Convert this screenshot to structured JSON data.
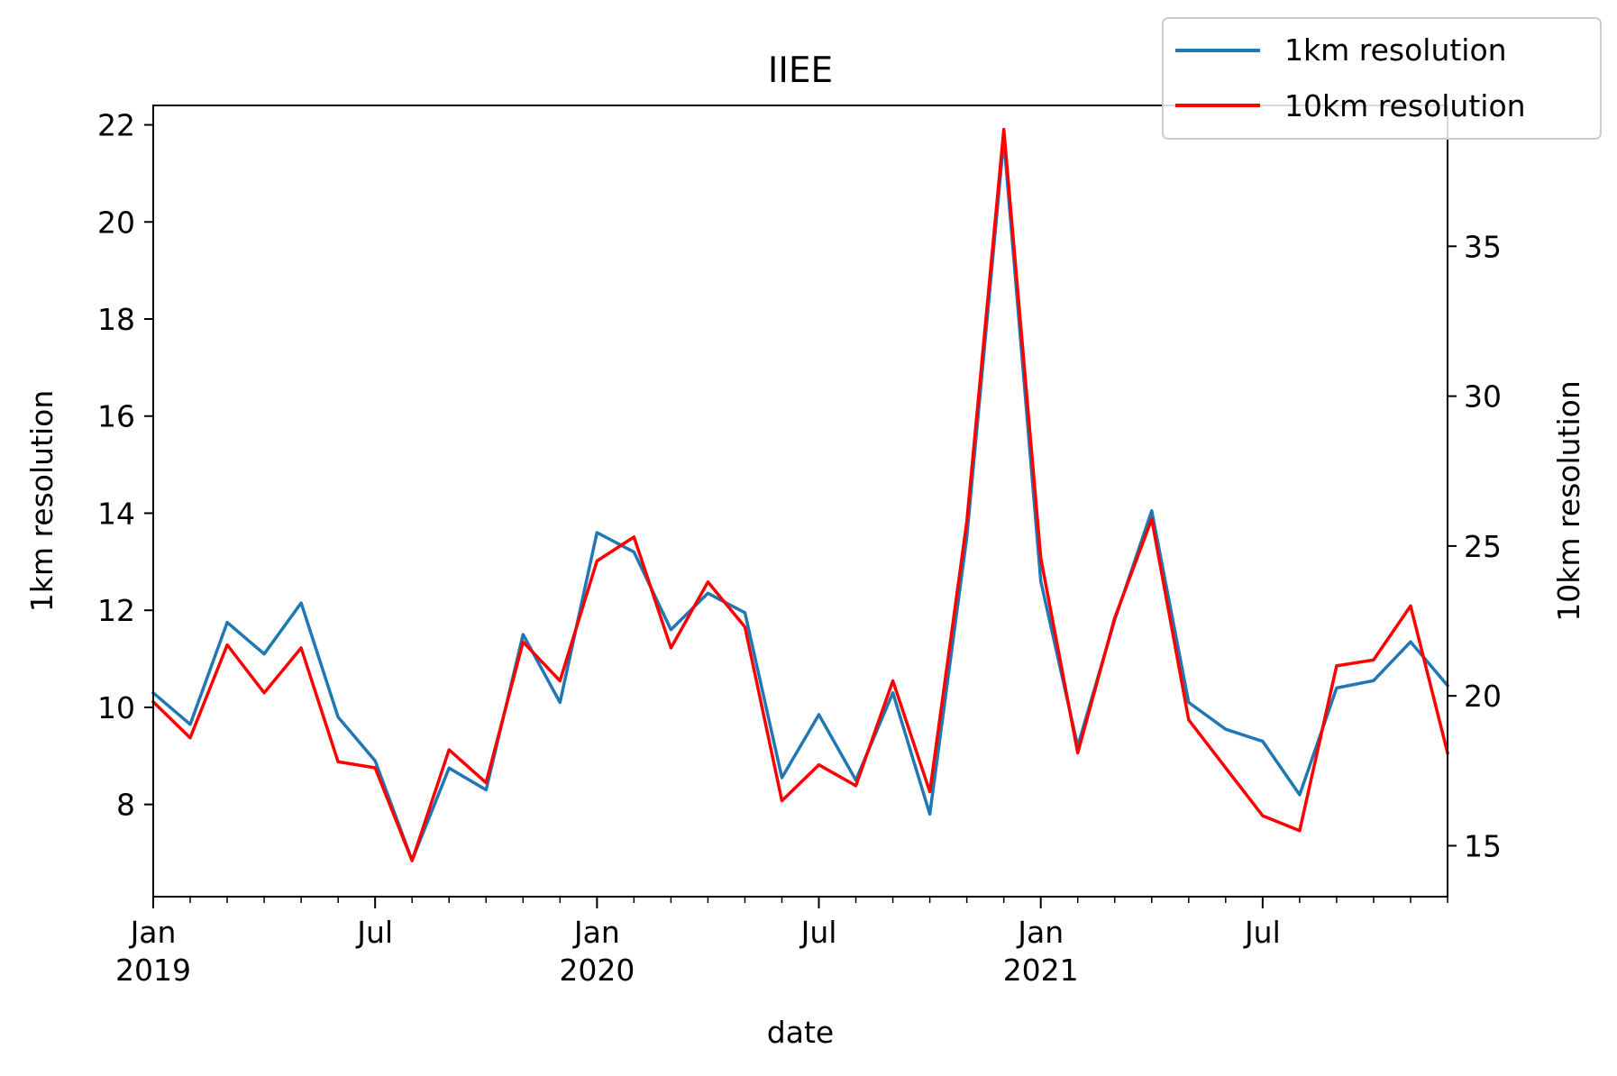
{
  "chart_data": {
    "type": "line",
    "title": "IIEE",
    "xlabel": "date",
    "ylabel": "1km resolution",
    "y2label": "10km resolution",
    "x_range": [
      "2019-01",
      "2021-12"
    ],
    "ylim": [
      6.1,
      22.4
    ],
    "y2lim": [
      13.3,
      39.7
    ],
    "yticks": [
      8,
      10,
      12,
      14,
      16,
      18,
      20,
      22
    ],
    "y2ticks": [
      15,
      20,
      25,
      30,
      35
    ],
    "xticks": [
      {
        "date": "2019-01",
        "month": "Jan",
        "year": "2019"
      },
      {
        "date": "2019-07",
        "month": "Jul",
        "year": ""
      },
      {
        "date": "2020-01",
        "month": "Jan",
        "year": "2020"
      },
      {
        "date": "2020-07",
        "month": "Jul",
        "year": ""
      },
      {
        "date": "2021-01",
        "month": "Jan",
        "year": "2021"
      },
      {
        "date": "2021-07",
        "month": "Jul",
        "year": ""
      }
    ],
    "grid": false,
    "legend_position": "top-right",
    "dates": [
      "2019-01",
      "2019-02",
      "2019-03",
      "2019-04",
      "2019-05",
      "2019-06",
      "2019-07",
      "2019-08",
      "2019-09",
      "2019-10",
      "2019-11",
      "2019-12",
      "2020-01",
      "2020-02",
      "2020-03",
      "2020-04",
      "2020-05",
      "2020-06",
      "2020-07",
      "2020-08",
      "2020-09",
      "2020-10",
      "2020-11",
      "2020-12",
      "2021-01",
      "2021-02",
      "2021-03",
      "2021-04",
      "2021-05",
      "2021-06",
      "2021-07",
      "2021-08",
      "2021-09",
      "2021-10",
      "2021-11",
      "2021-12"
    ],
    "series": [
      {
        "name": "1km resolution",
        "axis": "left",
        "color": "#1f77b4",
        "values": [
          10.3,
          9.65,
          11.75,
          11.1,
          12.15,
          9.8,
          8.9,
          6.85,
          8.75,
          8.3,
          11.5,
          10.1,
          13.6,
          13.2,
          11.6,
          12.35,
          11.95,
          8.55,
          9.85,
          8.5,
          10.3,
          7.8,
          13.5,
          21.7,
          12.6,
          9.2,
          11.8,
          14.05,
          10.1,
          9.55,
          9.3,
          8.2,
          10.4,
          10.55,
          11.35,
          10.45
        ]
      },
      {
        "name": "10km resolution",
        "axis": "right",
        "color": "#ff0000",
        "values": [
          19.8,
          18.6,
          21.7,
          20.1,
          21.6,
          17.8,
          17.6,
          14.5,
          18.2,
          17.1,
          21.8,
          20.5,
          24.5,
          25.3,
          21.6,
          23.8,
          22.3,
          16.5,
          17.7,
          17.0,
          20.5,
          16.8,
          25.8,
          38.9,
          24.6,
          18.1,
          22.6,
          25.9,
          19.2,
          17.6,
          16.0,
          15.5,
          21.0,
          21.2,
          23.0,
          18.1
        ]
      }
    ]
  }
}
